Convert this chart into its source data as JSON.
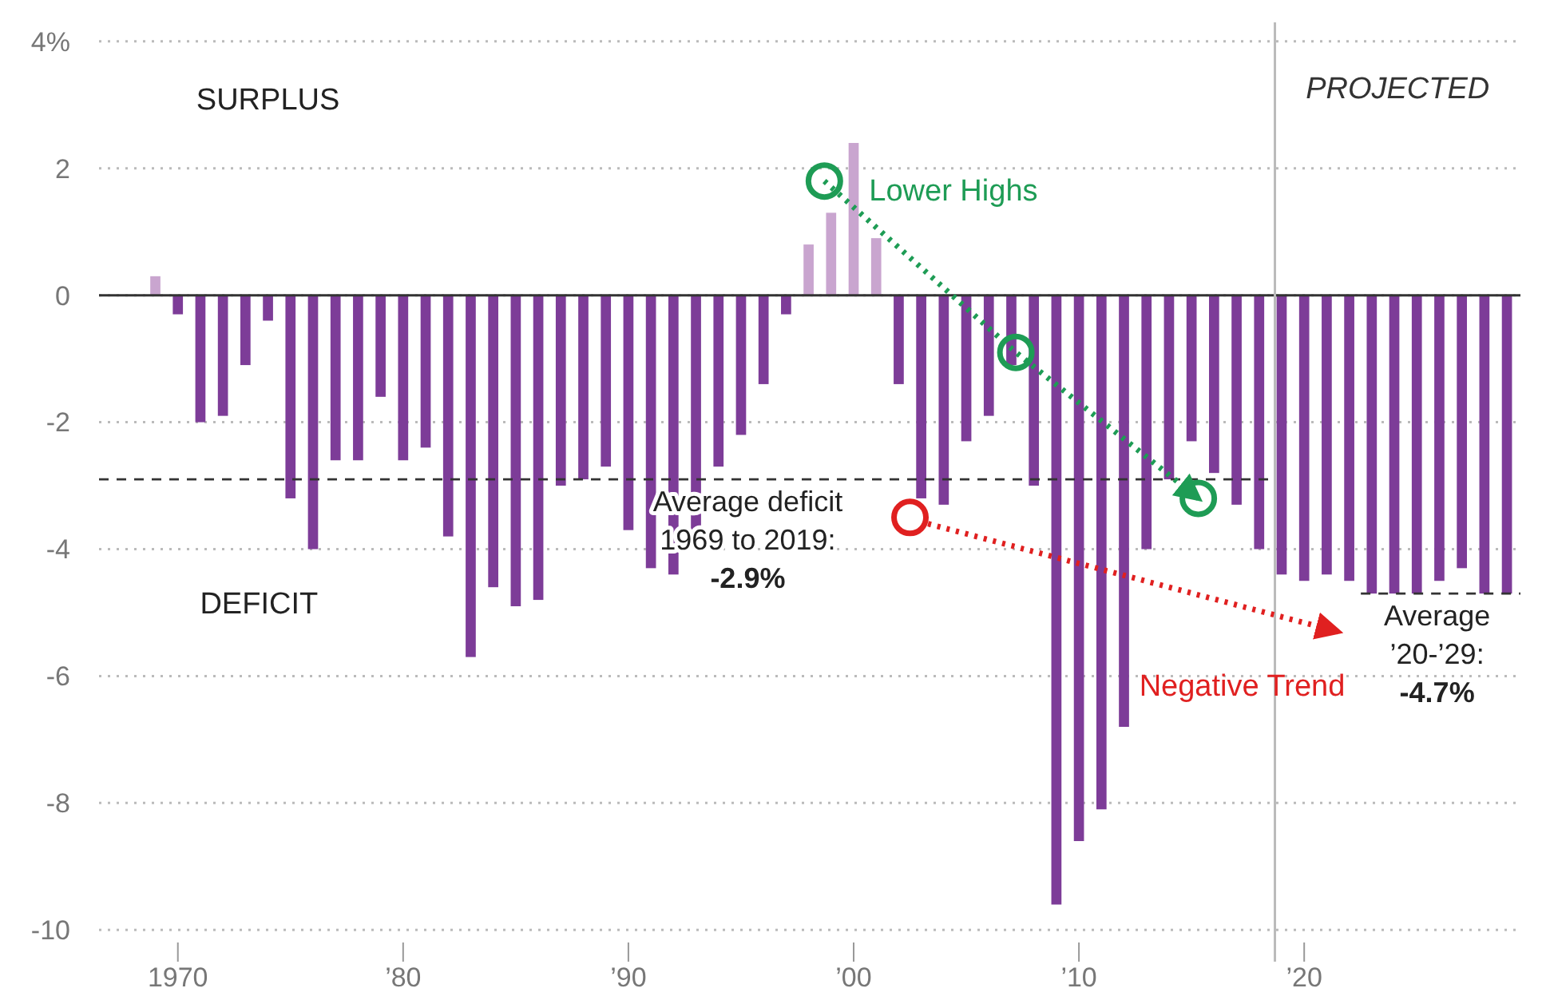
{
  "chart_data": {
    "type": "bar",
    "x": [
      1969,
      1970,
      1971,
      1972,
      1973,
      1974,
      1975,
      1976,
      1977,
      1978,
      1979,
      1980,
      1981,
      1982,
      1983,
      1984,
      1985,
      1986,
      1987,
      1988,
      1989,
      1990,
      1991,
      1992,
      1993,
      1994,
      1995,
      1996,
      1997,
      1998,
      1999,
      2000,
      2001,
      2002,
      2003,
      2004,
      2005,
      2006,
      2007,
      2008,
      2009,
      2010,
      2011,
      2012,
      2013,
      2014,
      2015,
      2016,
      2017,
      2018,
      2019,
      2020,
      2021,
      2022,
      2023,
      2024,
      2025,
      2026,
      2027,
      2028,
      2029
    ],
    "values": [
      0.3,
      -0.3,
      -2.0,
      -1.9,
      -1.1,
      -0.4,
      -3.2,
      -4.0,
      -2.6,
      -2.6,
      -1.6,
      -2.6,
      -2.4,
      -3.8,
      -5.7,
      -4.6,
      -4.9,
      -4.8,
      -3.0,
      -2.9,
      -2.7,
      -3.7,
      -4.3,
      -4.4,
      -3.7,
      -2.7,
      -2.2,
      -1.4,
      -0.3,
      0.8,
      1.3,
      2.4,
      0.9,
      -1.4,
      -3.2,
      -3.3,
      -2.3,
      -1.9,
      -1.1,
      -3.0,
      -9.6,
      -8.6,
      -8.1,
      -6.8,
      -4.0,
      -2.9,
      -2.3,
      -2.8,
      -3.3,
      -4.0,
      -4.4,
      -4.5,
      -4.4,
      -4.5,
      -4.7,
      -4.7,
      -4.7,
      -4.5,
      -4.3,
      -4.7,
      -4.7
    ],
    "colors": [
      "#c9a5cf",
      "#7d3c98",
      "#7d3c98",
      "#7d3c98",
      "#7d3c98",
      "#7d3c98",
      "#7d3c98",
      "#7d3c98",
      "#7d3c98",
      "#7d3c98",
      "#7d3c98",
      "#7d3c98",
      "#7d3c98",
      "#7d3c98",
      "#7d3c98",
      "#7d3c98",
      "#7d3c98",
      "#7d3c98",
      "#7d3c98",
      "#7d3c98",
      "#7d3c98",
      "#7d3c98",
      "#7d3c98",
      "#7d3c98",
      "#7d3c98",
      "#7d3c98",
      "#7d3c98",
      "#7d3c98",
      "#7d3c98",
      "#c9a5cf",
      "#c9a5cf",
      "#c9a5cf",
      "#c9a5cf",
      "#7d3c98",
      "#7d3c98",
      "#7d3c98",
      "#7d3c98",
      "#7d3c98",
      "#7d3c98",
      "#7d3c98",
      "#7d3c98",
      "#7d3c98",
      "#7d3c98",
      "#7d3c98",
      "#7d3c98",
      "#7d3c98",
      "#7d3c98",
      "#7d3c98",
      "#7d3c98",
      "#7d3c98",
      "#7d3c98",
      "#7d3c98",
      "#7d3c98",
      "#7d3c98",
      "#7d3c98",
      "#7d3c98",
      "#7d3c98",
      "#7d3c98",
      "#7d3c98",
      "#7d3c98",
      "#7d3c98"
    ],
    "series": [
      {
        "type": "line",
        "name": "Lower Highs",
        "color": "#1e9c55",
        "x": [
          1998.7,
          2007.2,
          2015.3
        ],
        "values": [
          1.8,
          -0.9,
          -3.2
        ],
        "marker": "circle",
        "line_style": "dotted"
      },
      {
        "type": "scatter",
        "color": "#e02020",
        "x": [
          2002.5
        ],
        "values": [
          -3.5
        ],
        "marker": "circle"
      },
      {
        "type": "line",
        "name": "Negative Trend",
        "color": "#e02020",
        "x": [
          2003.3,
          2021.5
        ],
        "values": [
          -3.6,
          -5.3
        ],
        "marker": "none",
        "line_style": "dotted"
      }
    ],
    "xlim": [
      1966.5,
      2029.6
    ],
    "xticks": [
      1970,
      {
        "value": 1980,
        "label": "’80"
      },
      {
        "value": 1990,
        "label": "’90"
      },
      {
        "value": 2000,
        "label": "’00"
      },
      {
        "value": 2010,
        "label": "’10"
      },
      {
        "value": 2020,
        "label": "’20"
      }
    ],
    "ylim": [
      -10.5,
      4.3
    ],
    "yticks": [
      {
        "value": 4,
        "label": "4%"
      },
      2,
      0,
      -2,
      -4,
      -6,
      -8,
      -10
    ],
    "grid": "y",
    "ref_lines": [
      {
        "axis": "x",
        "value": 2018.7,
        "label": "PROJECTED",
        "color": "#bbbbbb"
      },
      {
        "axis": "y",
        "value": -2.9,
        "label": "Average deficit\n1969 to 2019:\n-2.9%",
        "color": "#333333",
        "line_style": "dashed"
      },
      {
        "axis": "y",
        "value": -4.7,
        "label": "Average\n’20-’29:\n-4.7%",
        "color": "#333333",
        "line_style": "dashed"
      }
    ],
    "annotations": [
      "SURPLUS",
      "DEFICIT"
    ]
  }
}
